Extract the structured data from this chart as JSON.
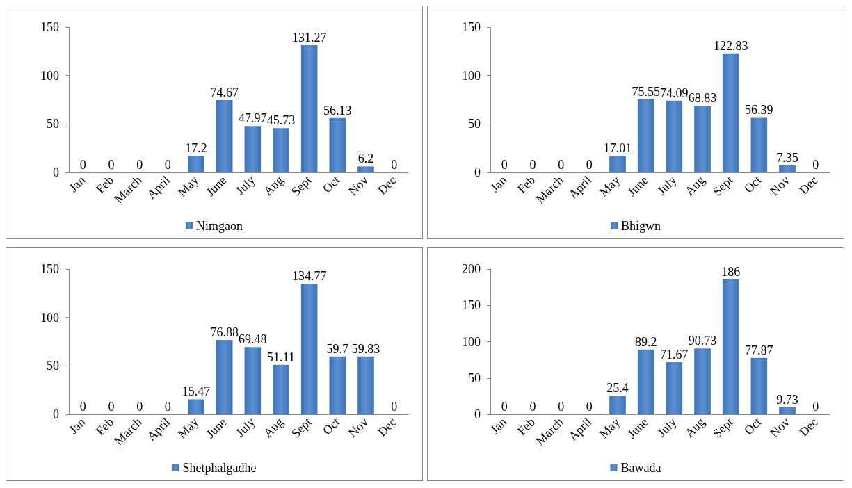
{
  "chart_data": [
    {
      "type": "bar",
      "categories": [
        "Jan",
        "Feb",
        "March",
        "April",
        "May",
        "June",
        "July",
        "Aug",
        "Sept",
        "Oct",
        "Nov",
        "Dec"
      ],
      "series": [
        {
          "name": "Nimgaon",
          "color": "#3f74b8",
          "values": [
            0,
            0,
            0,
            0,
            17.2,
            74.67,
            47.97,
            45.73,
            131.27,
            56.13,
            6.2,
            0
          ]
        }
      ],
      "ylim": [
        0,
        150
      ],
      "yticks": [
        0,
        50,
        100,
        150
      ],
      "data_labels": true,
      "grid": false,
      "legend": "bottom"
    },
    {
      "type": "bar",
      "categories": [
        "Jan",
        "Feb",
        "March",
        "April",
        "May",
        "June",
        "July",
        "Aug",
        "Sept",
        "Oct",
        "Nov",
        "Dec"
      ],
      "series": [
        {
          "name": "Bhigwn",
          "color": "#3f74b8",
          "values": [
            0,
            0,
            0,
            0,
            17.01,
            75.55,
            74.09,
            68.83,
            122.83,
            56.39,
            7.35,
            0
          ]
        }
      ],
      "ylim": [
        0,
        150
      ],
      "yticks": [
        0,
        50,
        100,
        150
      ],
      "data_labels": true,
      "grid": false,
      "legend": "bottom"
    },
    {
      "type": "bar",
      "categories": [
        "Jan",
        "Feb",
        "March",
        "April",
        "May",
        "June",
        "July",
        "Aug",
        "Sept",
        "Oct",
        "Nov",
        "Dec"
      ],
      "series": [
        {
          "name": "Shetphalgadhe",
          "color": "#3f74b8",
          "values": [
            0,
            0,
            0,
            0,
            15.47,
            76.88,
            69.48,
            51.11,
            134.77,
            59.7,
            59.83,
            0
          ]
        }
      ],
      "ylim": [
        0,
        150
      ],
      "yticks": [
        0,
        50,
        100,
        150
      ],
      "data_labels": true,
      "grid": false,
      "legend": "bottom"
    },
    {
      "type": "bar",
      "categories": [
        "Jan",
        "Feb",
        "March",
        "April",
        "May",
        "June",
        "July",
        "Aug",
        "Sept",
        "Oct",
        "Nov",
        "Dec"
      ],
      "series": [
        {
          "name": "Bawada",
          "color": "#3f74b8",
          "values": [
            0,
            0,
            0,
            0,
            25.4,
            89.2,
            71.67,
            90.73,
            186,
            77.87,
            9.73,
            0
          ]
        }
      ],
      "ylim": [
        0,
        200
      ],
      "yticks": [
        0,
        50,
        100,
        150,
        200
      ],
      "data_labels": true,
      "grid": false,
      "legend": "bottom"
    }
  ]
}
